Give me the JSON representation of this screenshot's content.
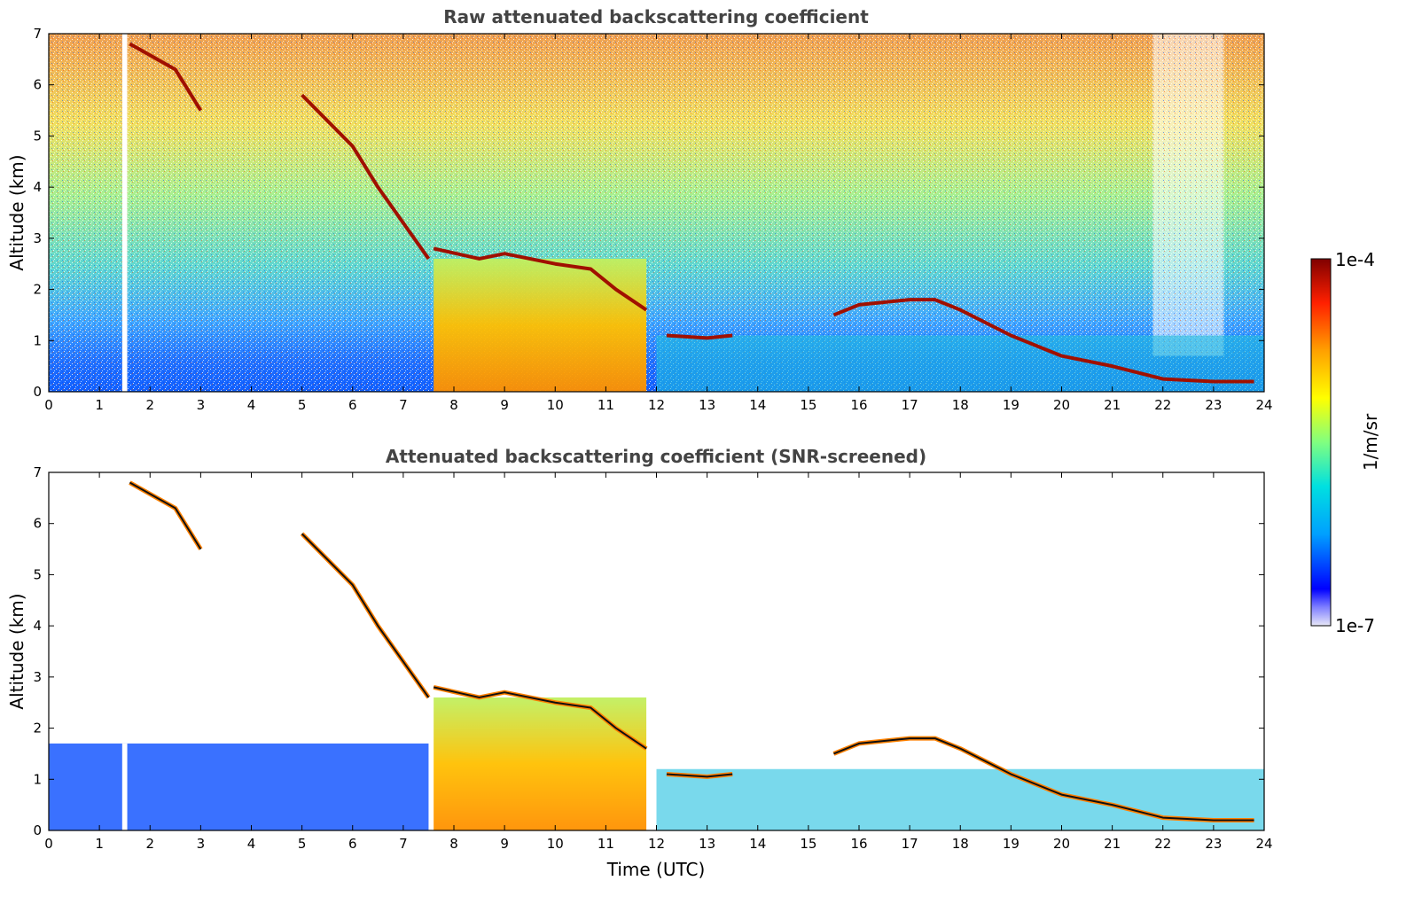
{
  "chart_data": [
    {
      "type": "heatmap",
      "title": "Raw attenuated backscattering coefficient",
      "xlabel": "",
      "ylabel": "Altitude (km)",
      "xlim": [
        0,
        24
      ],
      "ylim": [
        0,
        7
      ],
      "xticks": [
        "0",
        "1",
        "2",
        "3",
        "4",
        "5",
        "6",
        "7",
        "8",
        "9",
        "10",
        "11",
        "12",
        "13",
        "14",
        "15",
        "16",
        "17",
        "18",
        "19",
        "20",
        "21",
        "22",
        "23",
        "24"
      ],
      "yticks": [
        "0",
        "1",
        "2",
        "3",
        "4",
        "5",
        "6",
        "7"
      ],
      "grid": false,
      "cloud_layers": [
        {
          "x": [
            1.6,
            2.5,
            3.0
          ],
          "y": [
            6.8,
            6.3,
            5.5
          ]
        },
        {
          "x": [
            5.0,
            6.0,
            6.5,
            7.0,
            7.5
          ],
          "y": [
            5.8,
            4.8,
            4.0,
            3.3,
            2.6
          ]
        },
        {
          "x": [
            7.6,
            8.5,
            9.0,
            10.0,
            10.7,
            11.2,
            11.8
          ],
          "y": [
            2.8,
            2.6,
            2.7,
            2.5,
            2.4,
            2.0,
            1.6
          ]
        },
        {
          "x": [
            12.2,
            13.0,
            13.5
          ],
          "y": [
            1.1,
            1.05,
            1.1
          ]
        },
        {
          "x": [
            15.5,
            16.0,
            17.0,
            17.5,
            18.0,
            19.0,
            20.0,
            21.0,
            22.0,
            23.0,
            23.8
          ],
          "y": [
            1.5,
            1.7,
            1.8,
            1.8,
            1.6,
            1.1,
            0.7,
            0.5,
            0.25,
            0.2,
            0.2
          ]
        }
      ]
    },
    {
      "type": "heatmap",
      "title": "Attenuated backscattering coefficient (SNR-screened)",
      "xlabel": "Time (UTC)",
      "ylabel": "Altitude (km)",
      "xlim": [
        0,
        24
      ],
      "ylim": [
        0,
        7
      ],
      "xticks": [
        "0",
        "1",
        "2",
        "3",
        "4",
        "5",
        "6",
        "7",
        "8",
        "9",
        "10",
        "11",
        "12",
        "13",
        "14",
        "15",
        "16",
        "17",
        "18",
        "19",
        "20",
        "21",
        "22",
        "23",
        "24"
      ],
      "yticks": [
        "0",
        "1",
        "2",
        "3",
        "4",
        "5",
        "6",
        "7"
      ],
      "grid": false
    }
  ],
  "colorbar": {
    "label": "1/m/sr",
    "max_label": "1e-4",
    "min_label": "1e-7",
    "scale": "log",
    "range": [
      1e-07,
      0.0001
    ],
    "colors": [
      "#e8e8f8",
      "#0000ff",
      "#00a0ff",
      "#00e0e0",
      "#80ff80",
      "#ffff00",
      "#ffa000",
      "#ff2000",
      "#800000"
    ]
  }
}
